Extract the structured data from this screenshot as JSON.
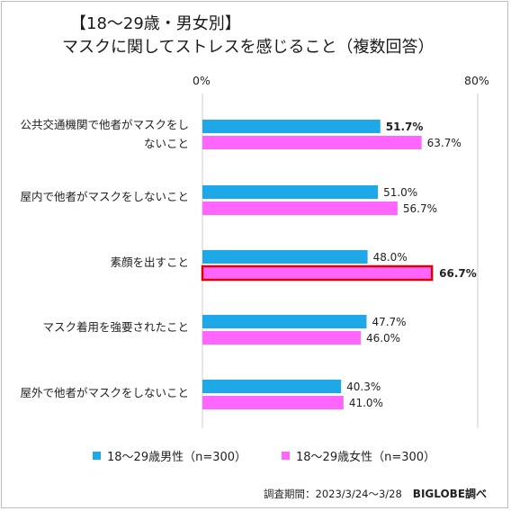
{
  "colors": {
    "male": "#1fa8e8",
    "female": "#ff66ff",
    "highlight_border": "#e00000",
    "grid": "#cfcfcf"
  },
  "chart_data": {
    "type": "bar",
    "orientation": "horizontal",
    "title": "【18～29歳・男女別】",
    "subtitle": "マスクに関してストレスを感じること（複数回答）",
    "xlim": [
      0,
      80
    ],
    "tick_labels": [
      "0%",
      "80%"
    ],
    "grid": true,
    "legend_position": "bottom",
    "categories": [
      [
        "公共交通機関で他者がマスクをし",
        "ないこと"
      ],
      [
        "屋内で他者がマスクをしないこと"
      ],
      [
        "素顔を出すこと"
      ],
      [
        "マスク着用を強要されたこと"
      ],
      [
        "屋外で他者がマスクをしないこと"
      ]
    ],
    "series": [
      {
        "name": "18～29歳男性（n=300）",
        "values": [
          51.7,
          51.0,
          48.0,
          47.7,
          40.3
        ],
        "value_labels": [
          "51.7%",
          "51.0%",
          "48.0%",
          "47.7%",
          "40.3%"
        ],
        "bold": [
          true,
          false,
          false,
          false,
          false
        ]
      },
      {
        "name": "18～29歳女性（n=300）",
        "values": [
          63.7,
          56.7,
          66.7,
          46.0,
          41.0
        ],
        "value_labels": [
          "63.7%",
          "56.7%",
          "66.7%",
          "46.0%",
          "41.0%"
        ],
        "bold": [
          false,
          false,
          true,
          false,
          false
        ],
        "highlight": [
          false,
          false,
          true,
          false,
          false
        ]
      }
    ]
  },
  "footer": {
    "period": "調査期間：2023/3/24～3/28",
    "source": "BIGLOBE調べ"
  }
}
